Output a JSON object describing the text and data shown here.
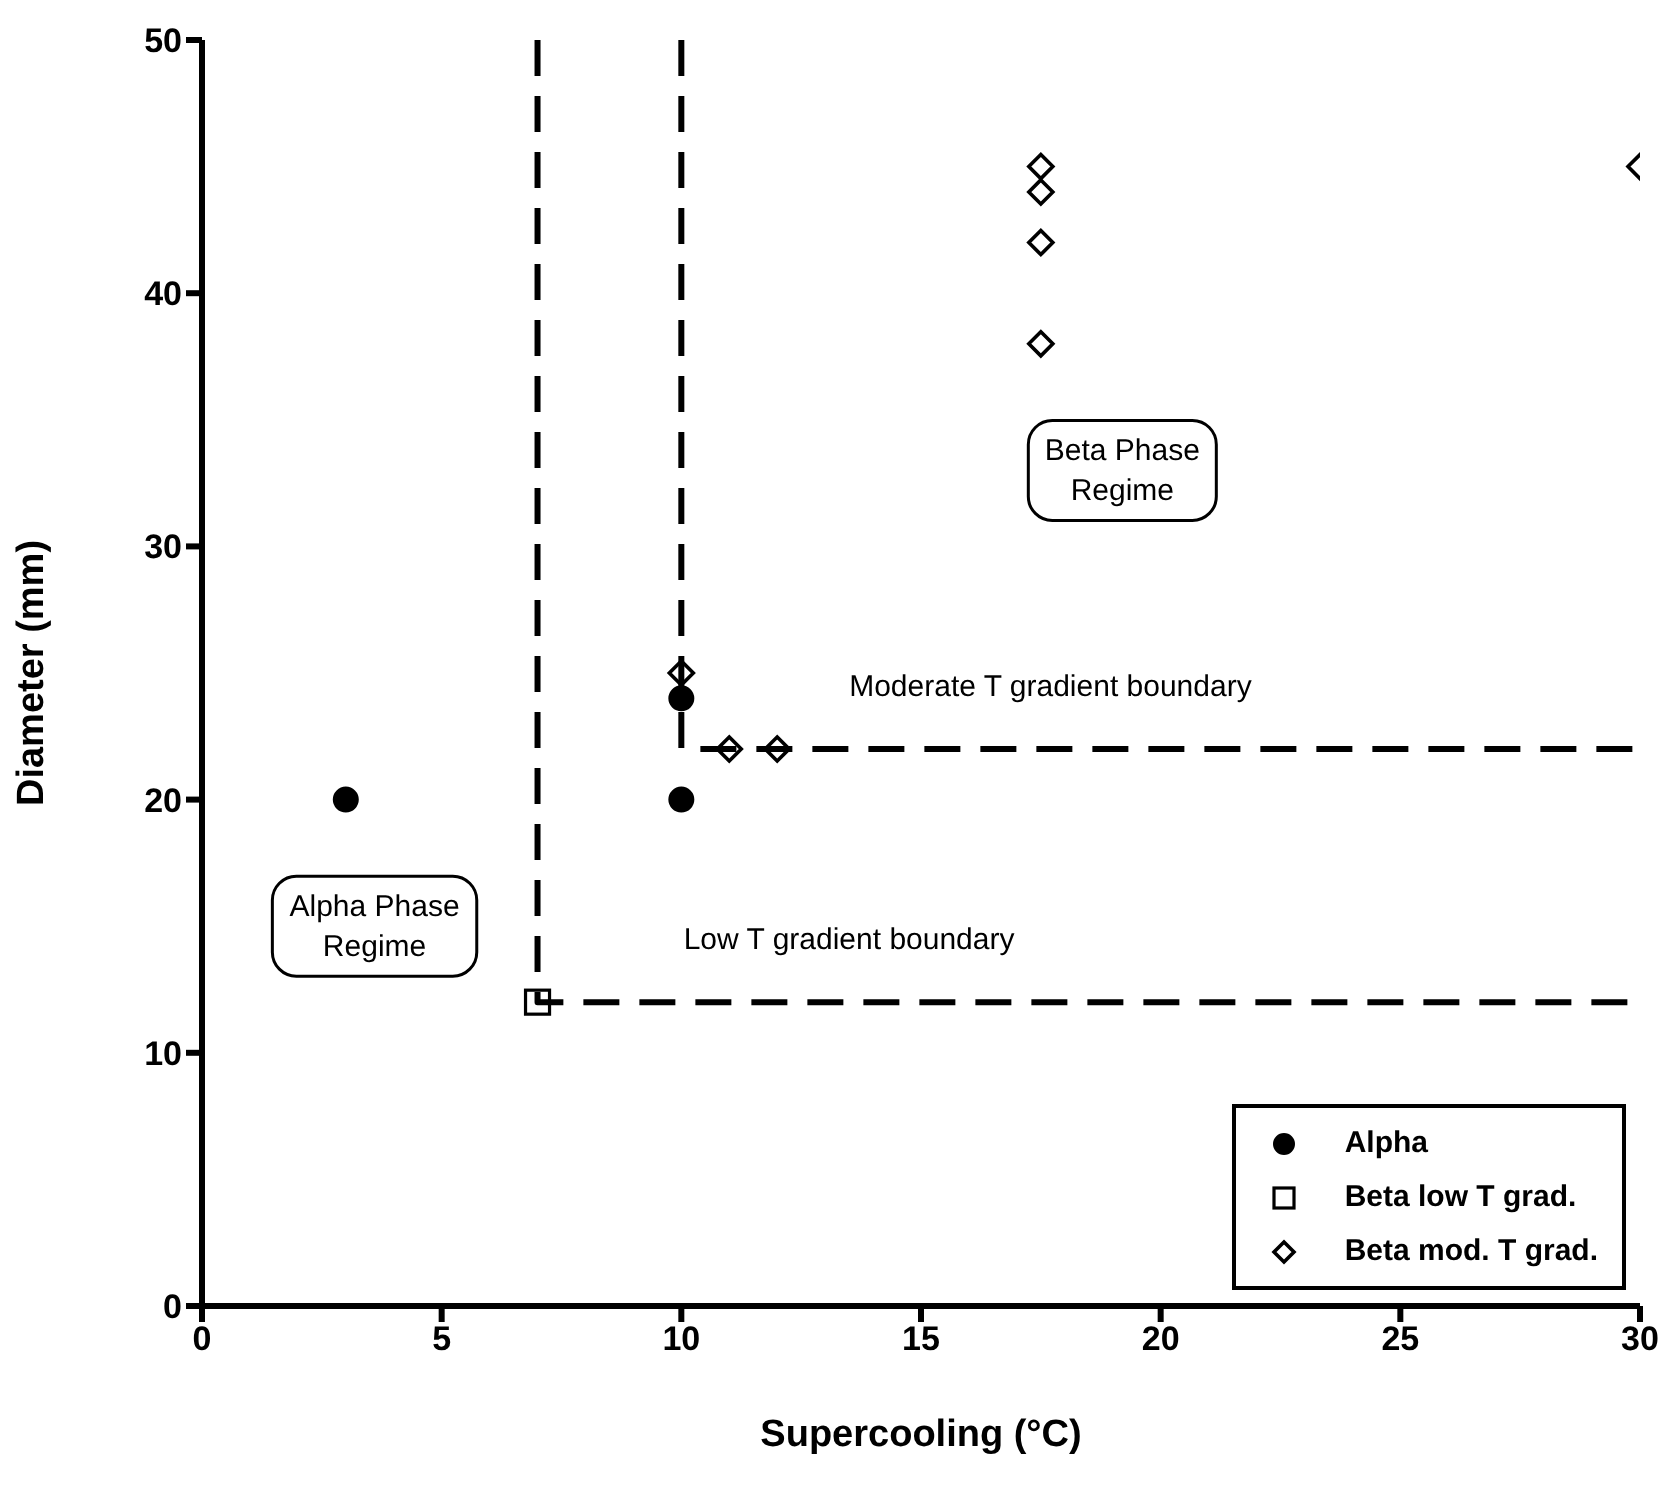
{
  "chart_data": {
    "type": "scatter",
    "xlabel": "Supercooling (°C)",
    "ylabel": "Diameter (mm)",
    "xlim": [
      0,
      30
    ],
    "ylim": [
      0,
      50
    ],
    "xticks": [
      0,
      5,
      10,
      15,
      20,
      25,
      30
    ],
    "yticks": [
      0,
      10,
      20,
      30,
      40,
      50
    ],
    "grid": false,
    "legend": "bottom right",
    "series": [
      {
        "name": "Alpha",
        "marker": "circle",
        "color": "#000000",
        "x": [
          3,
          10,
          10
        ],
        "values": [
          20,
          24,
          20
        ]
      },
      {
        "name": "Beta low T grad.",
        "marker": "square",
        "color": "#000000",
        "x": [
          7
        ],
        "values": [
          12
        ]
      },
      {
        "name": "Beta mod. T grad.",
        "marker": "diamond",
        "color": "#000000",
        "x": [
          10,
          11,
          12,
          17.5,
          17.5,
          17.5,
          17.5,
          30
        ],
        "values": [
          25,
          22,
          22,
          45,
          44,
          42,
          38,
          45
        ]
      },
      {
        "type": "line",
        "line_style": "dashed",
        "marker": "none",
        "color": "#000000",
        "x": [
          7,
          7,
          30
        ],
        "values": [
          50,
          12,
          12
        ]
      },
      {
        "type": "line",
        "line_style": "dashed",
        "marker": "none",
        "color": "#000000",
        "x": [
          10,
          10,
          30
        ],
        "values": [
          50,
          22,
          22
        ]
      }
    ],
    "annotations": [
      "Alpha Phase\nRegime",
      "Beta Phase\nRegime",
      "Moderate T gradient boundary",
      "Low T gradient boundary"
    ]
  }
}
